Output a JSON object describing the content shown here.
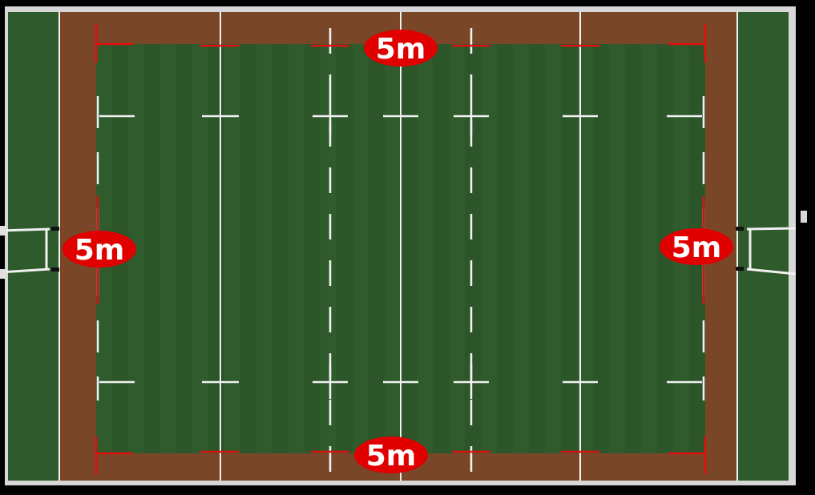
{
  "colors": {
    "background": "#000000",
    "border": "#d7d7d7",
    "grass": "#2f5a2c",
    "grass_dark": "#284f26",
    "infill": "#7a4628",
    "white_line": "#f2f2f2",
    "red_marker": "#e01010",
    "label_fill": "#e00000",
    "goal_post": "#f0f0f0",
    "post_pad": "#111111"
  },
  "labels": {
    "top": "5m",
    "bottom": "5m",
    "left": "5m",
    "right": "5m"
  },
  "icons": [
    "goal-post-left",
    "goal-post-right"
  ]
}
